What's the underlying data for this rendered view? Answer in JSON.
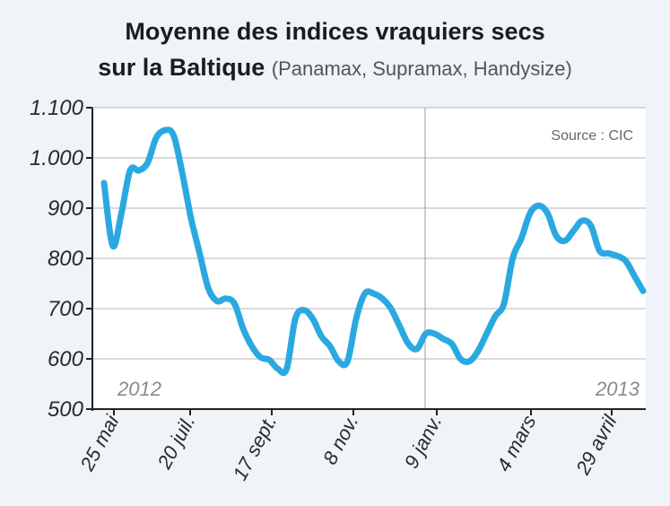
{
  "chart_data": {
    "type": "line",
    "title": "Moyenne des indices vraquiers secs",
    "title_line2": "sur la Baltique",
    "subtitle": "(Panamax, Supramax, Handysize)",
    "source": "Source : CIC",
    "year_labels": [
      "2012",
      "2013"
    ],
    "x_ticks": [
      "25 mai",
      "20 juil.",
      "17 sept.",
      "8 nov.",
      "9 janv.",
      "4 mars",
      "29 avril"
    ],
    "ylim": [
      500,
      1100
    ],
    "y_ticks": [
      "1.100",
      "1.000",
      "900",
      "800",
      "700",
      "600",
      "500"
    ],
    "y_tick_values": [
      1100,
      1000,
      900,
      800,
      700,
      600,
      500
    ],
    "grid": true,
    "line_color": "#2aa9e0",
    "series": [
      {
        "values": [
          950,
          825,
          890,
          975,
          975,
          990,
          1040,
          1055,
          1045,
          970,
          880,
          810,
          740,
          715,
          720,
          710,
          660,
          625,
          603,
          598,
          580,
          580,
          680,
          697,
          680,
          645,
          625,
          595,
          595,
          680,
          730,
          730,
          720,
          700,
          665,
          630,
          620,
          650,
          650,
          640,
          630,
          600,
          595,
          615,
          650,
          685,
          710,
          800,
          840,
          890,
          905,
          890,
          845,
          835,
          855,
          875,
          865,
          815,
          810,
          805,
          795,
          765,
          735
        ]
      }
    ]
  }
}
